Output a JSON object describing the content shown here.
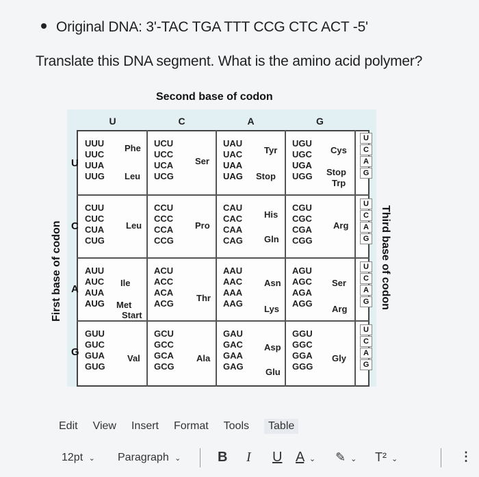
{
  "question": {
    "dna_label": "Original DNA: 3'-TAC TGA TTT CCG CTC ACT -5'",
    "prompt": "Translate this DNA segment. What is the amino acid polymer?"
  },
  "codon_table": {
    "second_base_title": "Second base of codon",
    "first_base_title": "First base of codon",
    "third_base_title": "Third base of codon",
    "second_bases": [
      "U",
      "C",
      "A",
      "G"
    ],
    "first_bases": [
      "U",
      "C",
      "A",
      "G"
    ],
    "third_bases": [
      "U",
      "C",
      "A",
      "G"
    ],
    "rows": [
      {
        "cells": [
          {
            "codons": [
              "UUU",
              "UUC",
              "UUA",
              "UUG"
            ],
            "aa": [
              "Phe",
              "Leu"
            ]
          },
          {
            "codons": [
              "UCU",
              "UCC",
              "UCA",
              "UCG"
            ],
            "aa": [
              "Ser"
            ]
          },
          {
            "codons": [
              "UAU",
              "UAC",
              "UAA",
              "UAG"
            ],
            "aa": [
              "Tyr",
              "Stop"
            ]
          },
          {
            "codons": [
              "UGU",
              "UGC",
              "UGA",
              "UGG"
            ],
            "aa": [
              "Cys",
              "Stop",
              "Trp"
            ]
          }
        ]
      },
      {
        "cells": [
          {
            "codons": [
              "CUU",
              "CUC",
              "CUA",
              "CUG"
            ],
            "aa": [
              "Leu"
            ]
          },
          {
            "codons": [
              "CCU",
              "CCC",
              "CCA",
              "CCG"
            ],
            "aa": [
              "Pro"
            ]
          },
          {
            "codons": [
              "CAU",
              "CAC",
              "CAA",
              "CAG"
            ],
            "aa": [
              "His",
              "Gln"
            ]
          },
          {
            "codons": [
              "CGU",
              "CGC",
              "CGA",
              "CGG"
            ],
            "aa": [
              "Arg"
            ]
          }
        ]
      },
      {
        "cells": [
          {
            "codons": [
              "AUU",
              "AUC",
              "AUA",
              "AUG"
            ],
            "aa": [
              "Ile",
              "Met",
              "Start"
            ]
          },
          {
            "codons": [
              "ACU",
              "ACC",
              "ACA",
              "ACG"
            ],
            "aa": [
              "Thr"
            ]
          },
          {
            "codons": [
              "AAU",
              "AAC",
              "AAA",
              "AAG"
            ],
            "aa": [
              "Asn",
              "Lys"
            ]
          },
          {
            "codons": [
              "AGU",
              "AGC",
              "AGA",
              "AGG"
            ],
            "aa": [
              "Ser",
              "Arg"
            ]
          }
        ]
      },
      {
        "cells": [
          {
            "codons": [
              "GUU",
              "GUC",
              "GUA",
              "GUG"
            ],
            "aa": [
              "Val"
            ]
          },
          {
            "codons": [
              "GCU",
              "GCC",
              "GCA",
              "GCG"
            ],
            "aa": [
              "Ala"
            ]
          },
          {
            "codons": [
              "GAU",
              "GAC",
              "GAA",
              "GAG"
            ],
            "aa": [
              "Asp",
              "Glu"
            ]
          },
          {
            "codons": [
              "GGU",
              "GGC",
              "GGA",
              "GGG"
            ],
            "aa": [
              "Gly"
            ]
          }
        ]
      }
    ]
  },
  "menubar": {
    "edit": "Edit",
    "view": "View",
    "insert": "Insert",
    "format": "Format",
    "tools": "Tools",
    "table": "Table"
  },
  "toolbar": {
    "font_size": "12pt",
    "paragraph": "Paragraph",
    "bold": "B",
    "italic": "I",
    "underline": "U",
    "text_color": "A",
    "superscript": "T²"
  },
  "colors": {
    "table_bg": "#e2f0f3",
    "grid_border": "#444444"
  }
}
